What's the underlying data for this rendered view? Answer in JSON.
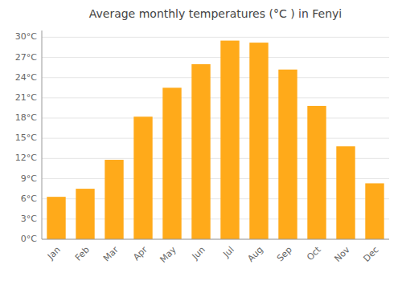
{
  "chart_data": {
    "type": "bar",
    "title": "Average monthly temperatures (°C ) in Fenyi",
    "categories": [
      "Jan",
      "Feb",
      "Mar",
      "Apr",
      "May",
      "Jun",
      "Jul",
      "Aug",
      "Sep",
      "Oct",
      "Nov",
      "Dec"
    ],
    "values": [
      6.3,
      7.5,
      11.8,
      18.2,
      22.5,
      26.0,
      29.5,
      29.2,
      25.2,
      19.8,
      13.8,
      8.3
    ],
    "color": "#FFAA1A",
    "ylim": [
      0,
      31
    ],
    "yticks": [
      {
        "value": 0,
        "label": "0°C"
      },
      {
        "value": 3,
        "label": "3°C"
      },
      {
        "value": 6,
        "label": "6°C"
      },
      {
        "value": 9,
        "label": "9°C"
      },
      {
        "value": 12,
        "label": "12°C"
      },
      {
        "value": 15,
        "label": "15°C"
      },
      {
        "value": 18,
        "label": "18°C"
      },
      {
        "value": 21,
        "label": "21°C"
      },
      {
        "value": 24,
        "label": "24°C"
      },
      {
        "value": 27,
        "label": "27°C"
      },
      {
        "value": 30,
        "label": "30°C"
      }
    ],
    "grid": true
  }
}
